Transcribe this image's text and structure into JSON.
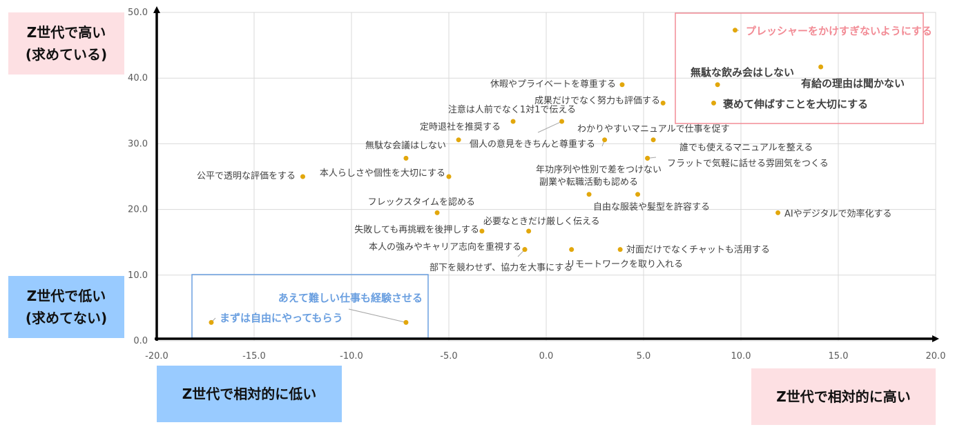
{
  "corner_labels": {
    "top_left_line1": "Z世代で高い",
    "top_left_line2": "(求めている)",
    "bottom_left_line1": "Z世代で低い",
    "bottom_left_line2": "(求めてない)",
    "bottom_axis_left": "Z世代で相対的に低い",
    "bottom_axis_right": "Z世代で相対的に高い"
  },
  "colors": {
    "point": "#e2a70c",
    "grid": "#d9d9d9",
    "axis": "#000000",
    "highlight_pink": "#f28b95",
    "highlight_blue": "#6a9fe0",
    "pink_bg": "#fde0e3",
    "blue_bg": "#99cbff"
  },
  "chart_data": {
    "type": "scatter",
    "xlim": [
      -20,
      20
    ],
    "ylim": [
      0,
      50
    ],
    "x_ticks": [
      "-20.0",
      "-15.0",
      "-10.0",
      "-5.0",
      "0.0",
      "5.0",
      "10.0",
      "15.0",
      "20.0"
    ],
    "y_ticks": [
      "0.0",
      "10.0",
      "20.0",
      "30.0",
      "40.0",
      "50.0"
    ],
    "grid": true,
    "points": [
      {
        "label": "プレッシャーをかけすぎないようにする",
        "x": 9.7,
        "y": 47.3
      },
      {
        "label": "有給の理由は聞かない",
        "x": 14.1,
        "y": 41.7
      },
      {
        "label": "無駄な飲み会はしない",
        "x": 8.8,
        "y": 39.0
      },
      {
        "label": "褒めて伸ばすことを大切にする",
        "x": 8.6,
        "y": 36.2
      },
      {
        "label": "休暇やプライベートを尊重する",
        "x": 3.9,
        "y": 39.0
      },
      {
        "label": "成果だけでなく努力も評価する",
        "x": 6.0,
        "y": 36.2
      },
      {
        "label": "注意は人前でなく1対1で伝える",
        "x": -1.7,
        "y": 33.4
      },
      {
        "label": "個人の意見をきちんと尊重する",
        "x": 0.8,
        "y": 33.4
      },
      {
        "label": "定時退社を推奨する",
        "x": -4.5,
        "y": 30.6
      },
      {
        "label": "わかりやすいマニュアルで仕事を促す",
        "x": 5.5,
        "y": 30.6
      },
      {
        "label": "年功序列や性別で差をつけない",
        "x": 3.0,
        "y": 30.6
      },
      {
        "label": "無駄な会議はしない",
        "x": -7.2,
        "y": 27.8
      },
      {
        "label": "誰でも使えるマニュアルを整える",
        "x": 5.2,
        "y": 27.8
      },
      {
        "label": "フラットで気軽に話せる雰囲気をつくる",
        "x": 5.2,
        "y": 27.8
      },
      {
        "label": "公平で透明な評価をする",
        "x": -12.5,
        "y": 25.0
      },
      {
        "label": "本人らしさや個性を大切にする",
        "x": -5.0,
        "y": 25.0
      },
      {
        "label": "副業や転職活動も認める",
        "x": 2.2,
        "y": 22.3
      },
      {
        "label": "自由な服装や髪型を許容する",
        "x": 4.7,
        "y": 22.3
      },
      {
        "label": "フレックスタイムを認める",
        "x": -5.6,
        "y": 19.5
      },
      {
        "label": "AIやデジタルで効率化する",
        "x": 11.9,
        "y": 19.5
      },
      {
        "label": "失敗しても再挑戦を後押しする",
        "x": -3.3,
        "y": 16.7
      },
      {
        "label": "必要なときだけ厳しく伝える",
        "x": -0.9,
        "y": 16.7
      },
      {
        "label": "本人の強みやキャリア志向を重視する",
        "x": -1.1,
        "y": 13.9
      },
      {
        "label": "部下を競わせず、協力を大事にする",
        "x": -1.1,
        "y": 13.9
      },
      {
        "label": "リモートワークを取り入れる",
        "x": 1.3,
        "y": 13.9
      },
      {
        "label": "対面だけでなくチャットも活用する",
        "x": 3.8,
        "y": 13.9
      },
      {
        "label": "あえて難しい仕事も経験させる",
        "x": -7.2,
        "y": 2.8
      },
      {
        "label": "まずは自由にやってもらう",
        "x": -17.2,
        "y": 2.8
      }
    ]
  }
}
